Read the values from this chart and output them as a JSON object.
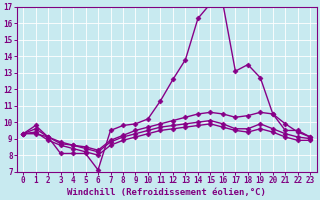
{
  "xlabel": "Windchill (Refroidissement éolien,°C)",
  "background_color": "#c8eaf0",
  "line_color": "#880088",
  "grid_color": "#aadddd",
  "xlim": [
    -0.5,
    23.5
  ],
  "ylim": [
    7,
    17
  ],
  "xticks": [
    0,
    1,
    2,
    3,
    4,
    5,
    6,
    7,
    8,
    9,
    10,
    11,
    12,
    13,
    14,
    15,
    16,
    17,
    18,
    19,
    20,
    21,
    22,
    23
  ],
  "yticks": [
    7,
    8,
    9,
    10,
    11,
    12,
    13,
    14,
    15,
    16,
    17
  ],
  "lines": [
    {
      "x": [
        0,
        1,
        2,
        3,
        4,
        5,
        6,
        7,
        8,
        9,
        10,
        11,
        12,
        13,
        14,
        15,
        16,
        17,
        18,
        19,
        20,
        21,
        22,
        23
      ],
      "y": [
        9.3,
        9.8,
        9.1,
        8.1,
        8.1,
        8.1,
        7.1,
        9.5,
        9.8,
        9.9,
        10.2,
        11.3,
        12.6,
        13.8,
        16.3,
        17.2,
        17.2,
        13.1,
        13.5,
        12.7,
        10.5,
        9.5,
        9.5,
        9.1
      ],
      "marker": "D",
      "markersize": 2.5,
      "linewidth": 1.0
    },
    {
      "x": [
        0,
        1,
        2,
        3,
        4,
        5,
        6,
        7,
        8,
        9,
        10,
        11,
        12,
        13,
        14,
        15,
        16,
        17,
        18,
        19,
        20,
        21,
        22,
        23
      ],
      "y": [
        9.3,
        9.6,
        9.1,
        8.7,
        8.6,
        8.5,
        8.3,
        8.9,
        9.2,
        9.5,
        9.7,
        9.9,
        10.1,
        10.3,
        10.5,
        10.6,
        10.5,
        10.3,
        10.4,
        10.6,
        10.5,
        9.9,
        9.4,
        9.1
      ],
      "marker": "D",
      "markersize": 2.5,
      "linewidth": 1.0
    },
    {
      "x": [
        0,
        1,
        2,
        3,
        4,
        5,
        6,
        7,
        8,
        9,
        10,
        11,
        12,
        13,
        14,
        15,
        16,
        17,
        18,
        19,
        20,
        21,
        22,
        23
      ],
      "y": [
        9.3,
        9.4,
        8.9,
        8.6,
        8.4,
        8.2,
        8.0,
        8.6,
        8.9,
        9.1,
        9.3,
        9.5,
        9.6,
        9.7,
        9.8,
        9.9,
        9.7,
        9.5,
        9.4,
        9.6,
        9.4,
        9.1,
        8.9,
        8.9
      ],
      "marker": "D",
      "markersize": 2.5,
      "linewidth": 1.0
    },
    {
      "x": [
        0,
        1,
        2,
        3,
        4,
        5,
        6,
        7,
        8,
        9,
        10,
        11,
        12,
        13,
        14,
        15,
        16,
        17,
        18,
        19,
        20,
        21,
        22,
        23
      ],
      "y": [
        9.3,
        9.3,
        9.1,
        8.8,
        8.6,
        8.4,
        8.2,
        8.8,
        9.1,
        9.3,
        9.5,
        9.7,
        9.8,
        9.9,
        10.0,
        10.1,
        9.9,
        9.6,
        9.6,
        9.9,
        9.6,
        9.3,
        9.1,
        9.0
      ],
      "marker": "D",
      "markersize": 2.5,
      "linewidth": 1.0
    }
  ],
  "tick_fontsize": 5.5,
  "axis_fontsize": 6.5
}
